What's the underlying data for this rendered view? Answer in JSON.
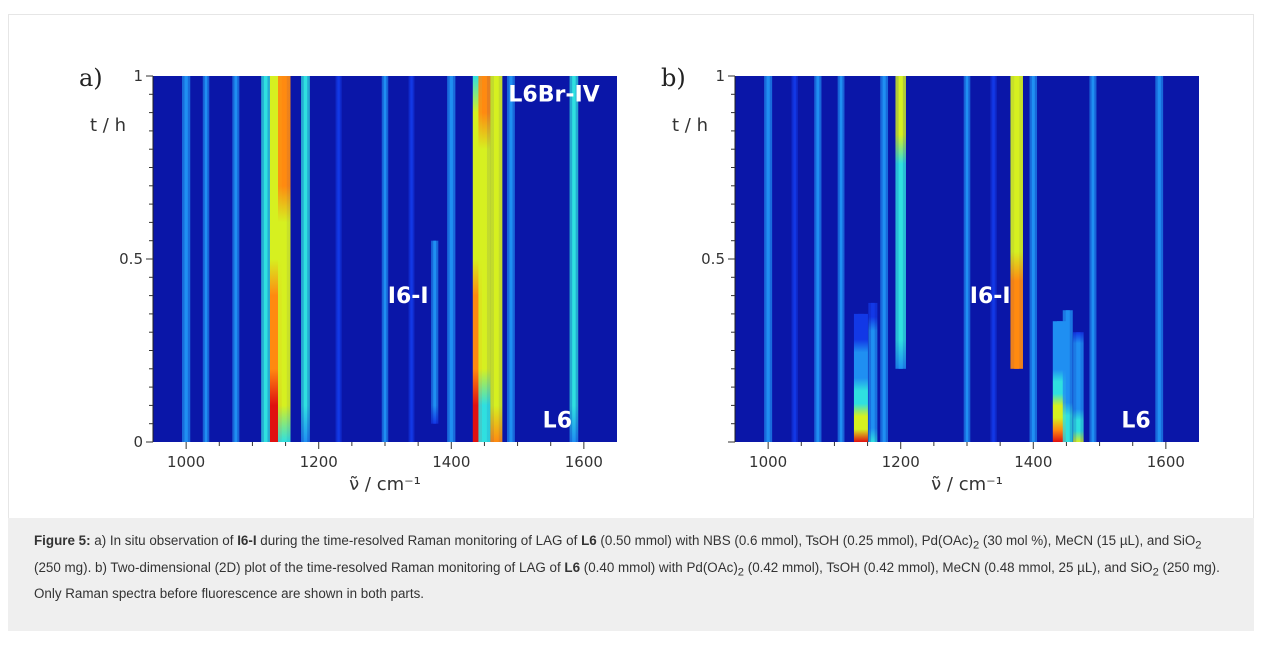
{
  "chart_data": [
    {
      "type": "heatmap",
      "panel_label": "a)",
      "xlabel": "ν̃ / cm⁻¹",
      "ylabel": "t / h",
      "xlim": [
        950,
        1650
      ],
      "ylim": [
        0,
        1
      ],
      "xticks": [
        1000,
        1200,
        1400,
        1600
      ],
      "yticks": [
        0,
        0.5,
        1
      ],
      "ytick_labels": [
        "0",
        "0.5",
        "1"
      ],
      "annotations": [
        {
          "text": "L6Br-IV",
          "x": 1555,
          "y": 0.93
        },
        {
          "text": "I6-I",
          "x": 1335,
          "y": 0.38
        },
        {
          "text": "L6",
          "x": 1560,
          "y": 0.04
        }
      ],
      "bands": [
        {
          "x": 1000,
          "t0": 0,
          "t1": 1,
          "i0": 0.42,
          "i1": 0.42
        },
        {
          "x": 1030,
          "t0": 0,
          "t1": 1,
          "i0": 0.25,
          "i1": 0.25
        },
        {
          "x": 1075,
          "t0": 0,
          "t1": 1,
          "i0": 0.3,
          "i1": 0.3
        },
        {
          "x": 1120,
          "t0": 0,
          "t1": 1,
          "i0": 0.5,
          "i1": 0.5
        },
        {
          "x": 1137,
          "t0": 0,
          "t1": 1,
          "i0": 1.0,
          "i1": 0.65
        },
        {
          "x": 1148,
          "t0": 0,
          "t1": 1,
          "i0": 0.55,
          "i1": 0.85
        },
        {
          "x": 1180,
          "t0": 0,
          "t1": 1,
          "i0": 0.45,
          "i1": 0.48
        },
        {
          "x": 1230,
          "t0": 0,
          "t1": 1,
          "i0": 0.2,
          "i1": 0.2
        },
        {
          "x": 1300,
          "t0": 0,
          "t1": 1,
          "i0": 0.25,
          "i1": 0.25
        },
        {
          "x": 1340,
          "t0": 0,
          "t1": 1,
          "i0": 0.18,
          "i1": 0.18
        },
        {
          "x": 1375,
          "t0": 0.05,
          "t1": 0.55,
          "i0": 0.2,
          "i1": 0.32
        },
        {
          "x": 1400,
          "t0": 0,
          "t1": 1,
          "i0": 0.42,
          "i1": 0.4
        },
        {
          "x": 1443,
          "t0": 0,
          "t1": 1,
          "i0": 1.0,
          "i1": 0.62
        },
        {
          "x": 1450,
          "t0": 0,
          "t1": 1,
          "i0": 0.55,
          "i1": 0.8
        },
        {
          "x": 1468,
          "t0": 0,
          "t1": 1,
          "i0": 0.8,
          "i1": 0.72
        },
        {
          "x": 1490,
          "t0": 0,
          "t1": 1,
          "i0": 0.38,
          "i1": 0.35
        },
        {
          "x": 1585,
          "t0": 0,
          "t1": 1,
          "i0": 0.45,
          "i1": 0.47
        }
      ]
    },
    {
      "type": "heatmap",
      "panel_label": "b)",
      "xlabel": "ν̃ / cm⁻¹",
      "ylabel": "t / h",
      "xlim": [
        950,
        1650
      ],
      "ylim": [
        0,
        1
      ],
      "xticks": [
        1000,
        1200,
        1400,
        1600
      ],
      "yticks": [
        0.5,
        1
      ],
      "ytick_labels": [
        "0.5",
        "1"
      ],
      "annotations": [
        {
          "text": "I6-I",
          "x": 1335,
          "y": 0.38
        },
        {
          "text": "L6",
          "x": 1555,
          "y": 0.04
        }
      ],
      "bands": [
        {
          "x": 1000,
          "t0": 0,
          "t1": 1,
          "i0": 0.4,
          "i1": 0.4
        },
        {
          "x": 1040,
          "t0": 0,
          "t1": 1,
          "i0": 0.22,
          "i1": 0.22
        },
        {
          "x": 1075,
          "t0": 0,
          "t1": 1,
          "i0": 0.32,
          "i1": 0.32
        },
        {
          "x": 1110,
          "t0": 0,
          "t1": 1,
          "i0": 0.28,
          "i1": 0.28
        },
        {
          "x": 1140,
          "t0": 0,
          "t1": 0.35,
          "i0": 1.0,
          "i1": 0.1
        },
        {
          "x": 1158,
          "t0": 0,
          "t1": 0.38,
          "i0": 0.5,
          "i1": 0.2
        },
        {
          "x": 1175,
          "t0": 0,
          "t1": 1,
          "i0": 0.35,
          "i1": 0.38
        },
        {
          "x": 1200,
          "t0": 0.2,
          "t1": 1,
          "i0": 0.45,
          "i1": 0.65
        },
        {
          "x": 1300,
          "t0": 0,
          "t1": 1,
          "i0": 0.26,
          "i1": 0.26
        },
        {
          "x": 1340,
          "t0": 0,
          "t1": 1,
          "i0": 0.22,
          "i1": 0.22
        },
        {
          "x": 1375,
          "t0": 0.2,
          "t1": 1,
          "i0": 0.85,
          "i1": 0.72
        },
        {
          "x": 1400,
          "t0": 0,
          "t1": 1,
          "i0": 0.35,
          "i1": 0.35
        },
        {
          "x": 1440,
          "t0": 0,
          "t1": 0.33,
          "i0": 1.0,
          "i1": 0.25
        },
        {
          "x": 1452,
          "t0": 0,
          "t1": 0.36,
          "i0": 0.6,
          "i1": 0.25
        },
        {
          "x": 1468,
          "t0": 0,
          "t1": 0.3,
          "i0": 0.65,
          "i1": 0.2
        },
        {
          "x": 1490,
          "t0": 0,
          "t1": 1,
          "i0": 0.3,
          "i1": 0.28
        },
        {
          "x": 1590,
          "t0": 0,
          "t1": 1,
          "i0": 0.38,
          "i1": 0.38
        }
      ]
    }
  ],
  "caption": {
    "label": "Figure 5:",
    "segments": [
      {
        "t": " a) In situ observation of "
      },
      {
        "t": "I6-I",
        "b": true
      },
      {
        "t": " during the time-resolved Raman monitoring of LAG of "
      },
      {
        "t": "L6",
        "b": true
      },
      {
        "t": " (0.50 mmol) with NBS (0.6 mmol), TsOH (0.25 mmol), Pd(OAc)"
      },
      {
        "t": "2",
        "sub": true
      },
      {
        "t": " (30 mol %), MeCN (15 µL), and SiO"
      },
      {
        "t": "2",
        "sub": true
      },
      {
        "t": " (250 mg). b) Two-dimensional (2D) plot of the time-resolved Raman monitoring of LAG of "
      },
      {
        "t": "L6",
        "b": true
      },
      {
        "t": " (0.40 mmol) with Pd(OAc)"
      },
      {
        "t": "2",
        "sub": true
      },
      {
        "t": " (0.42 mmol), TsOH (0.42 mmol), MeCN (0.48 mmol, 25 µL), and SiO"
      },
      {
        "t": "2",
        "sub": true
      },
      {
        "t": " (250 mg). Only Raman spectra before fluorescence are shown in both parts."
      }
    ]
  }
}
